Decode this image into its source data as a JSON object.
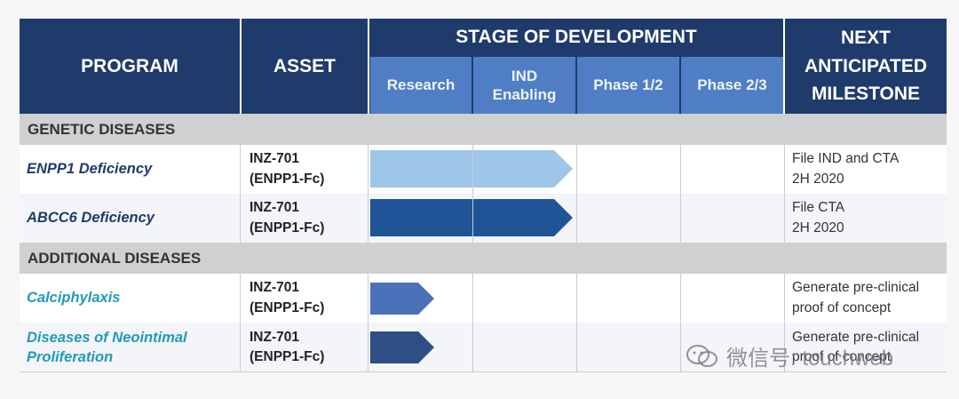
{
  "header": {
    "program": "PROGRAM",
    "asset": "ASSET",
    "stage": "STAGE OF DEVELOPMENT",
    "milestone_lines": [
      "NEXT",
      "ANTICIPATED",
      "MILESTONE"
    ],
    "stages": [
      {
        "lines": [
          "Research"
        ]
      },
      {
        "lines": [
          "IND",
          "Enabling"
        ]
      },
      {
        "lines": [
          "Phase 1/2"
        ]
      },
      {
        "lines": [
          "Phase 2/3"
        ]
      }
    ]
  },
  "sections": [
    {
      "title": "GENETIC DISEASES",
      "rows": [
        {
          "program_lines": [
            "ENPP1 Deficiency"
          ],
          "program_color": "#1f3b6b",
          "asset_lines": [
            "INZ-701",
            "(ENPP1-Fc)"
          ],
          "milestone_lines": [
            "File IND and CTA",
            "2H 2020"
          ],
          "progress_stages": 2,
          "arrow_color": "#9dc6e8"
        },
        {
          "program_lines": [
            "ABCC6 Deficiency"
          ],
          "program_color": "#1f3b6b",
          "asset_lines": [
            "INZ-701",
            "(ENPP1-Fc)"
          ],
          "milestone_lines": [
            "File CTA",
            "2H 2020"
          ],
          "progress_stages": 2,
          "arrow_color": "#1f5596"
        }
      ]
    },
    {
      "title": "ADDITIONAL DISEASES",
      "rows": [
        {
          "program_lines": [
            "Calciphylaxis"
          ],
          "program_color": "#1f9bb8",
          "asset_lines": [
            "INZ-701",
            "(ENPP1-Fc)"
          ],
          "milestone_lines": [
            "Generate pre-clinical",
            "proof of concept"
          ],
          "progress_stages": 0.6,
          "arrow_color": "#4b72b8"
        },
        {
          "program_lines": [
            "Diseases of Neointimal",
            "Proliferation"
          ],
          "program_color": "#1f9bb8",
          "asset_lines": [
            "INZ-701",
            "(ENPP1-Fc)"
          ],
          "milestone_lines": [
            "Generate pre-clinical",
            "proof of concept"
          ],
          "progress_stages": 0.6,
          "arrow_color": "#2d4f86"
        }
      ]
    }
  ],
  "watermark": {
    "text": "微信号: touchweb",
    "icon": "wechat-icon"
  }
}
